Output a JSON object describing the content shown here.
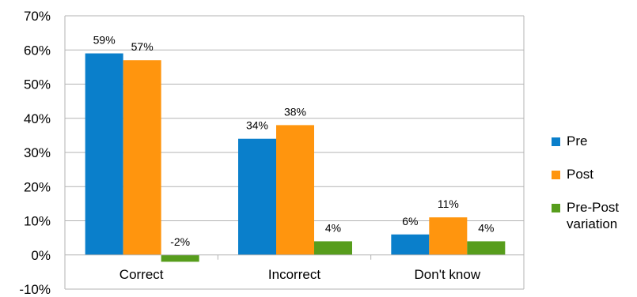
{
  "chart_data": {
    "type": "bar",
    "categories": [
      "Correct",
      "Incorrect",
      "Don't know"
    ],
    "series": [
      {
        "name": "Pre",
        "values": [
          59,
          34,
          6
        ],
        "labels": [
          "59%",
          "34%",
          "6%"
        ],
        "color": "#0a7fcb"
      },
      {
        "name": "Post",
        "values": [
          57,
          38,
          11
        ],
        "labels": [
          "57%",
          "38%",
          "11%"
        ],
        "color": "#ff950e"
      },
      {
        "name": "Pre-Post variation",
        "values": [
          -2,
          4,
          4
        ],
        "labels": [
          "-2%",
          "4%",
          "4%"
        ],
        "color": "#579d1c"
      }
    ],
    "ylim": [
      -10,
      70
    ],
    "yticks": [
      -10,
      0,
      10,
      20,
      30,
      40,
      50,
      60,
      70
    ],
    "ytick_labels": [
      "-10%",
      "0%",
      "10%",
      "20%",
      "30%",
      "40%",
      "50%",
      "60%",
      "70%"
    ],
    "grid": true,
    "legend_position": "right",
    "title": "",
    "xlabel": "",
    "ylabel": ""
  }
}
